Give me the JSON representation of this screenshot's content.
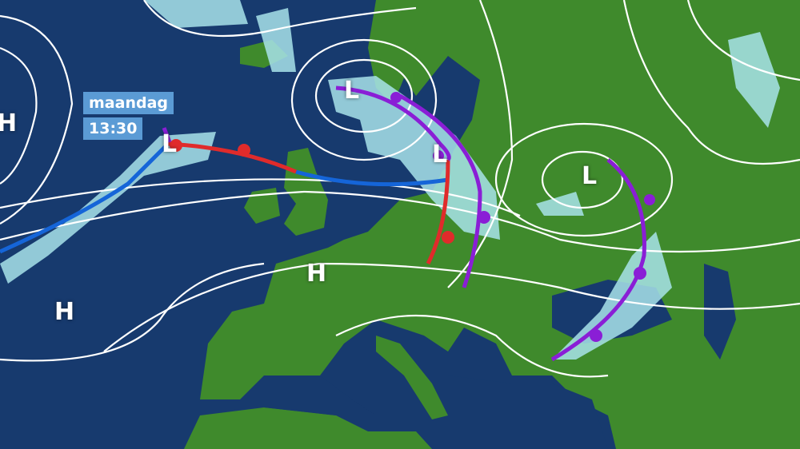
{
  "timestamp": {
    "day": "maandag",
    "time": "13:30"
  },
  "pressure_labels": [
    {
      "type": "H"
    },
    {
      "type": "H"
    },
    {
      "type": "H"
    },
    {
      "type": "L"
    },
    {
      "type": "L"
    },
    {
      "type": "L"
    },
    {
      "type": "L"
    }
  ],
  "colors": {
    "sea": "#173a6e",
    "land": "#3f8a2c",
    "isobar": "#ffffff",
    "cold_front": "#1565d8",
    "warm_front": "#e02b2b",
    "occluded_front": "#8a1ed6",
    "precipitation": "#a8e3ea",
    "label_box": "#5b9bd5"
  }
}
